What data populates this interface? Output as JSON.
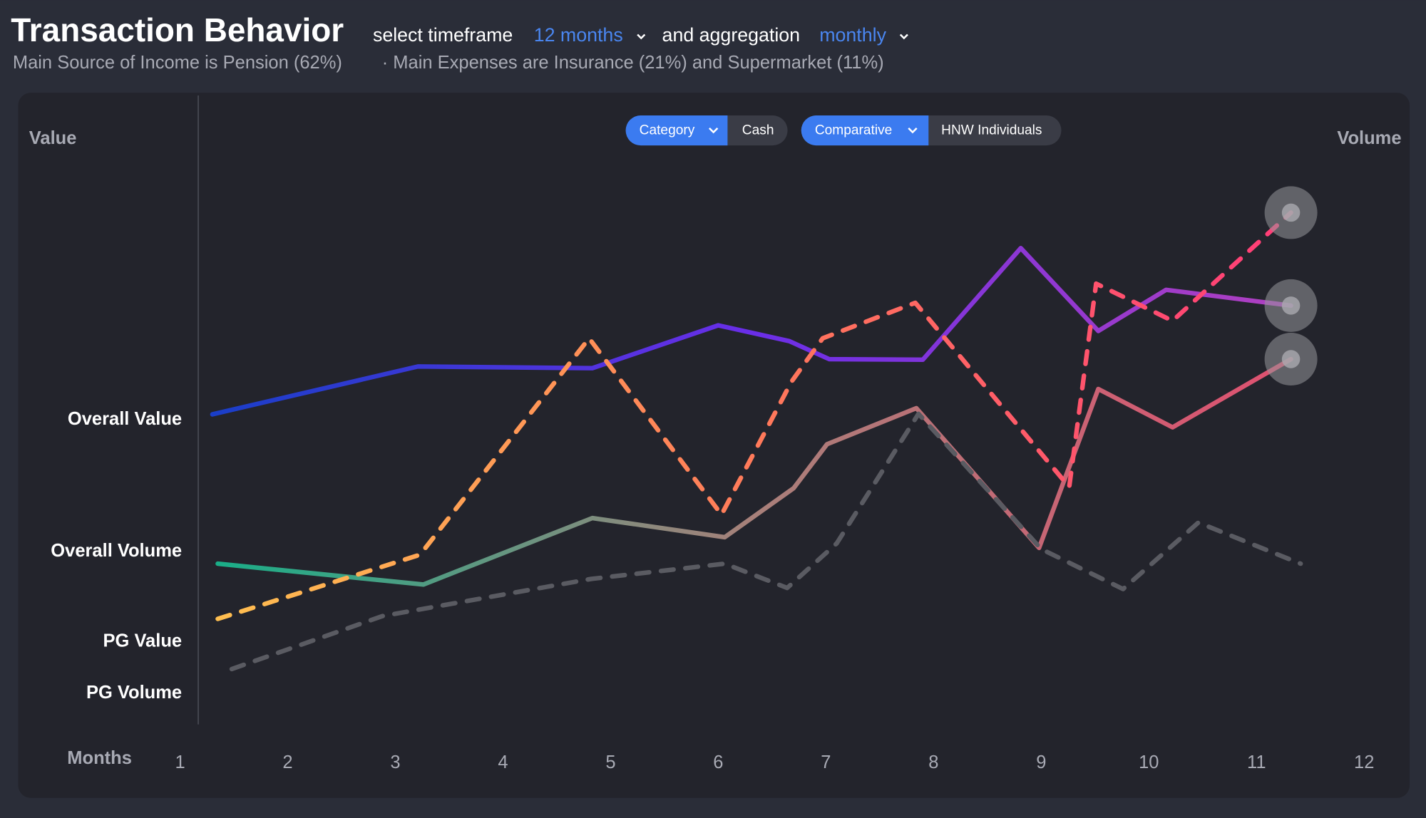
{
  "header": {
    "title": "Transaction Behavior",
    "timeframe_prefix": "select timeframe",
    "timeframe": "12 months",
    "aggregation_prefix": "and aggregation",
    "aggregation": "monthly",
    "subtitle_income": "Main Source of Income is Pension (62%)",
    "subtitle_expenses": "· Main Expenses are Insurance (21%) and Supermarket (11%)"
  },
  "filters": {
    "category_button": "Category",
    "category_value": "Cash",
    "comparative_button": "Comparative",
    "comparative_value": "HNW Individuals"
  },
  "chart_data": {
    "type": "line",
    "y_label": "Value",
    "y2_label": "Volume",
    "x_label": "Months",
    "xlim": [
      1,
      12
    ],
    "xticks": [
      1,
      2,
      3,
      4,
      5,
      6,
      7,
      8,
      9,
      10,
      11,
      12
    ],
    "ylim": [
      0,
      100
    ],
    "series": [
      {
        "name": "Overall Value",
        "colors": [
          "#1a3ec8",
          "#6a2ee8",
          "#b040c0"
        ],
        "dashed": false,
        "end_marker": true,
        "x": [
          1.3,
          3.21,
          4.83,
          6.0,
          6.66,
          7.03,
          7.9,
          8.81,
          9.53,
          10.16,
          11.32
        ],
        "values": [
          55.5,
          64.0,
          63.7,
          71.3,
          68.5,
          65.3,
          65.2,
          85.0,
          70.3,
          77.6,
          74.8
        ]
      },
      {
        "name": "Overall Volume",
        "colors": [
          "#1aae88",
          "#a8807a",
          "#e05070"
        ],
        "dashed": false,
        "end_marker": true,
        "x": [
          1.35,
          3.26,
          4.83,
          6.06,
          6.7,
          7.01,
          7.84,
          8.98,
          9.53,
          10.22,
          11.32
        ],
        "values": [
          29.0,
          25.3,
          37.1,
          33.7,
          42.4,
          50.2,
          56.6,
          31.8,
          60.0,
          53.2,
          65.3
        ]
      },
      {
        "name": "PG Value",
        "colors": [
          "#ffbf50",
          "#ff7a5a",
          "#ff3c78"
        ],
        "dashed": true,
        "end_marker": true,
        "x": [
          1.35,
          3.23,
          4.8,
          6.03,
          6.68,
          6.97,
          7.83,
          9.26,
          9.51,
          10.22,
          11.32
        ],
        "values": [
          19.2,
          30.6,
          69.0,
          37.7,
          61.3,
          69.0,
          75.3,
          42.6,
          78.7,
          72.1,
          91.3
        ]
      },
      {
        "name": "PG Volume",
        "colors": [
          "#5a5b62",
          "#5a5b62",
          "#5a5b62"
        ],
        "dashed": true,
        "end_marker": false,
        "x": [
          1.48,
          2.88,
          4.82,
          6.06,
          6.64,
          7.1,
          7.86,
          9.0,
          9.76,
          10.46,
          11.41
        ],
        "values": [
          10.3,
          19.7,
          26.3,
          29.0,
          24.7,
          32.6,
          55.6,
          31.6,
          24.5,
          36.3,
          29.0
        ]
      }
    ]
  }
}
